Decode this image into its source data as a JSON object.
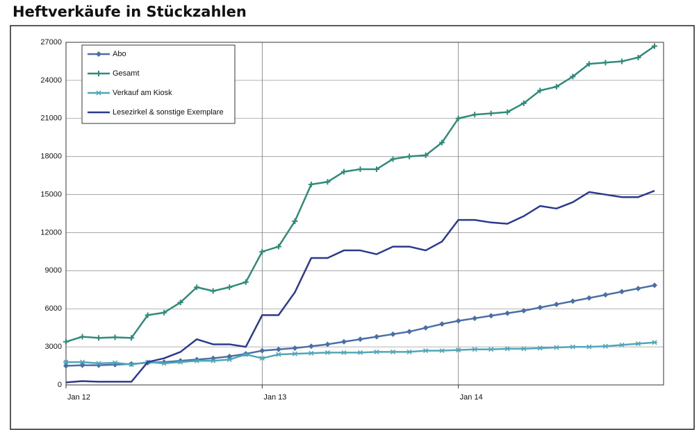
{
  "chart_data": {
    "type": "line",
    "title": "Heftverkäufe in Stückzahlen",
    "categories": [
      "Jan 12",
      null,
      null,
      null,
      null,
      null,
      null,
      null,
      null,
      null,
      null,
      null,
      "Jan 13",
      null,
      null,
      null,
      null,
      null,
      null,
      null,
      null,
      null,
      null,
      null,
      "Jan 14",
      null,
      null,
      null,
      null,
      null,
      null,
      null,
      null,
      null,
      null,
      null,
      null
    ],
    "series": [
      {
        "name": "Abo",
        "color": "#4a6fa5",
        "marker": "diamond",
        "values": [
          1500,
          1550,
          1550,
          1600,
          1650,
          1750,
          1800,
          1900,
          2000,
          2100,
          2250,
          2450,
          2700,
          2800,
          2900,
          3050,
          3200,
          3400,
          3600,
          3800,
          4000,
          4200,
          4500,
          4800,
          5050,
          5250,
          5450,
          5650,
          5850,
          6100,
          6350,
          6600,
          6850,
          7100,
          7350,
          7600,
          7850
        ]
      },
      {
        "name": "Gesamt",
        "color": "#2e8b7a",
        "marker": "plus",
        "values": [
          3400,
          3800,
          3700,
          3750,
          3700,
          5500,
          5700,
          6500,
          7700,
          7400,
          7700,
          8100,
          10500,
          10900,
          12900,
          15800,
          16000,
          16800,
          17000,
          17000,
          17800,
          18000,
          18100,
          19100,
          21000,
          21300,
          21400,
          21500,
          22200,
          23200,
          23500,
          24300,
          25300,
          25400,
          25500,
          25800,
          26700
        ]
      },
      {
        "name": "Verkauf am Kiosk",
        "color": "#4ea6b8",
        "marker": "asterisk",
        "values": [
          1800,
          1800,
          1700,
          1750,
          1600,
          1800,
          1700,
          1800,
          1900,
          1900,
          2000,
          2400,
          2100,
          2400,
          2450,
          2500,
          2550,
          2550,
          2550,
          2600,
          2600,
          2600,
          2700,
          2700,
          2750,
          2800,
          2800,
          2850,
          2850,
          2900,
          2950,
          3000,
          3000,
          3050,
          3150,
          3250,
          3350
        ]
      },
      {
        "name": "Lesezirkel & sonstige Exemplare",
        "color": "#2b3a8c",
        "marker": "none",
        "values": [
          200,
          300,
          250,
          250,
          250,
          1800,
          2100,
          2600,
          3600,
          3200,
          3200,
          3000,
          5500,
          5500,
          7300,
          10000,
          10000,
          10600,
          10600,
          10300,
          10900,
          10900,
          10600,
          11300,
          13000,
          13000,
          12800,
          12700,
          13300,
          14100,
          13900,
          14400,
          15200,
          15000,
          14800,
          14800,
          15300
        ]
      }
    ],
    "ylim": [
      0,
      27000
    ],
    "yticks": [
      0,
      3000,
      6000,
      9000,
      12000,
      15000,
      18000,
      21000,
      24000,
      27000
    ],
    "grid": true,
    "legend": "top-left"
  }
}
